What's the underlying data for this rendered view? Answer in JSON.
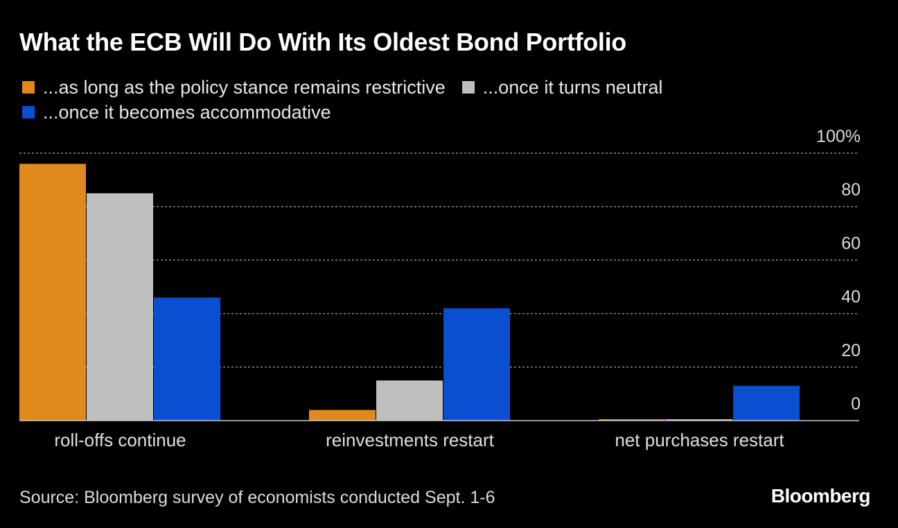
{
  "title": "What the ECB Will Do With Its Oldest Bond Portfolio",
  "source": "Source: Bloomberg survey of economists conducted Sept. 1-6",
  "brand": "Bloomberg",
  "colors": {
    "background": "#000000",
    "gridline": "#8a8a8a",
    "baseline": "#cccccc",
    "axis_text": "#dcdcdc"
  },
  "chart_data": {
    "type": "bar",
    "title": "What the ECB Will Do With Its Oldest Bond Portfolio",
    "xlabel": "",
    "ylabel": "",
    "ylim": [
      0,
      100
    ],
    "yticks": [
      0,
      20,
      40,
      60,
      80,
      100
    ],
    "ytick_labels": [
      "0",
      "20",
      "40",
      "60",
      "80",
      "100%"
    ],
    "grid": true,
    "legend_position": "top-left",
    "categories": [
      "roll-offs continue",
      "reinvestments restart",
      "net purchases restart"
    ],
    "series": [
      {
        "name": "...as long as the policy stance remains restrictive",
        "color": "#e08a1e",
        "values": [
          96,
          4,
          0.3
        ]
      },
      {
        "name": "...once it turns neutral",
        "color": "#bfbfbf",
        "values": [
          85,
          15,
          0.3
        ]
      },
      {
        "name": "...once it becomes accommodative",
        "color": "#0a4fd1",
        "values": [
          46,
          42,
          13
        ]
      }
    ]
  }
}
